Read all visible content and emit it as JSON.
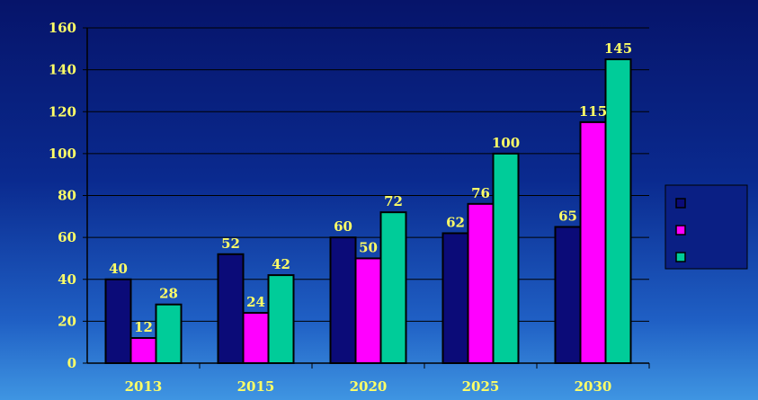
{
  "chart_data": {
    "type": "bar",
    "title": "",
    "xlabel": "",
    "ylabel": "",
    "categories": [
      "2013",
      "2015",
      "2020",
      "2025",
      "2030"
    ],
    "series": [
      {
        "values": [
          40,
          52,
          60,
          62,
          65
        ],
        "color": "#0b0b78"
      },
      {
        "values": [
          12,
          24,
          50,
          76,
          115
        ],
        "color": "#ff00ff"
      },
      {
        "values": [
          28,
          42,
          72,
          100,
          145
        ],
        "color": "#00cc99"
      }
    ],
    "ylim": [
      0,
      160
    ],
    "yticks": [
      "0",
      "20",
      "40",
      "60",
      "80",
      "100",
      "120",
      "140",
      "160"
    ],
    "grid": true,
    "legend_placement": "right",
    "colors": {
      "text": "#ffff66",
      "grid": "#000000",
      "bar_outline": "#000000"
    }
  }
}
